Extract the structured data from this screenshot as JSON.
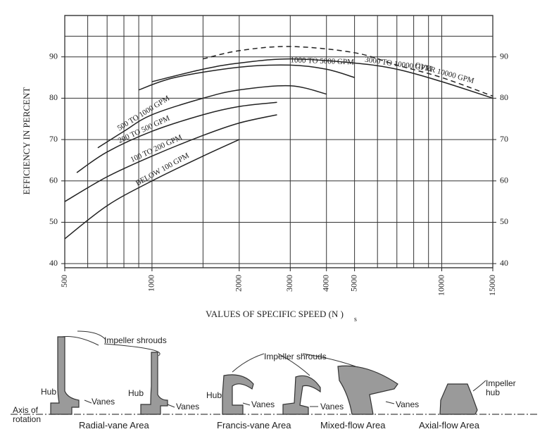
{
  "chart_data": {
    "type": "line",
    "ylabel": "EFFICIENCY IN PERCENT",
    "xlabel": "VALUES OF SPECIFIC SPEED (N )",
    "xlabel_subscript": "s",
    "xscale": "log",
    "xlim": [
      500,
      15000
    ],
    "xticks": [
      500,
      1000,
      2000,
      3000,
      4000,
      5000,
      10000,
      15000
    ],
    "x_grid": [
      500,
      600,
      700,
      800,
      900,
      1000,
      1500,
      2000,
      3000,
      4000,
      5000,
      6000,
      7000,
      8000,
      9000,
      10000,
      15000
    ],
    "ylim": [
      39,
      100
    ],
    "yticks": [
      40,
      50,
      60,
      70,
      80,
      90
    ],
    "y_grid": [
      40,
      50,
      60,
      70,
      80,
      90,
      95
    ],
    "grid": true,
    "color": "#222222",
    "series": [
      {
        "name": "BELOW 100 GPM",
        "x": [
          500,
          700,
          1000,
          1500,
          2000
        ],
        "values": [
          46,
          54,
          60,
          66,
          70
        ]
      },
      {
        "name": "100 TO 200 GPM",
        "x": [
          500,
          700,
          1000,
          1500,
          2000,
          2700
        ],
        "values": [
          55,
          61,
          66,
          71,
          74,
          76
        ]
      },
      {
        "name": "200 TO 500 GPM",
        "x": [
          550,
          700,
          1000,
          1500,
          2000,
          2700
        ],
        "values": [
          62,
          67,
          72,
          76,
          78,
          79
        ]
      },
      {
        "name": "500 TO 1000 GPM",
        "x": [
          650,
          800,
          1000,
          1500,
          2000,
          3000,
          4000
        ],
        "values": [
          68,
          72,
          76,
          80,
          82,
          83,
          81
        ]
      },
      {
        "name": "1000 TO 5000 GPM",
        "x": [
          900,
          1200,
          2000,
          3000,
          4000,
          5000
        ],
        "values": [
          82,
          85,
          87.5,
          88,
          87,
          85
        ]
      },
      {
        "name": "3000 TO 10000 GPM",
        "x": [
          1000,
          1500,
          2000,
          3000,
          5000,
          7000,
          10000,
          15000
        ],
        "values": [
          84,
          87,
          88.5,
          89.5,
          88.5,
          87,
          84,
          80
        ]
      },
      {
        "name": "OVER 10000 GPM",
        "dashed": true,
        "x": [
          1500,
          2000,
          3000,
          5000,
          7000,
          10000,
          15000
        ],
        "values": [
          89.5,
          91.5,
          92.5,
          91,
          88,
          85,
          80.5
        ]
      }
    ]
  },
  "diagram": {
    "impeller_shrouds_1": "Impeller shrouds",
    "impeller_shrouds_2": "Impeller shrouds",
    "hub_1": "Hub",
    "hub_2": "Hub",
    "hub_3": "Hub",
    "vanes_1": "Vanes",
    "vanes_2": "Vanes",
    "vanes_3": "Vanes",
    "vanes_4": "Vanes",
    "vanes_5": "Vanes",
    "axis": "Axis of rotation",
    "radial": "Radial-vane Area",
    "francis": "Francis-vane Area",
    "mixed": "Mixed-flow Area",
    "axial": "Axial-flow Area",
    "impeller_hub": "Impeller hub"
  }
}
